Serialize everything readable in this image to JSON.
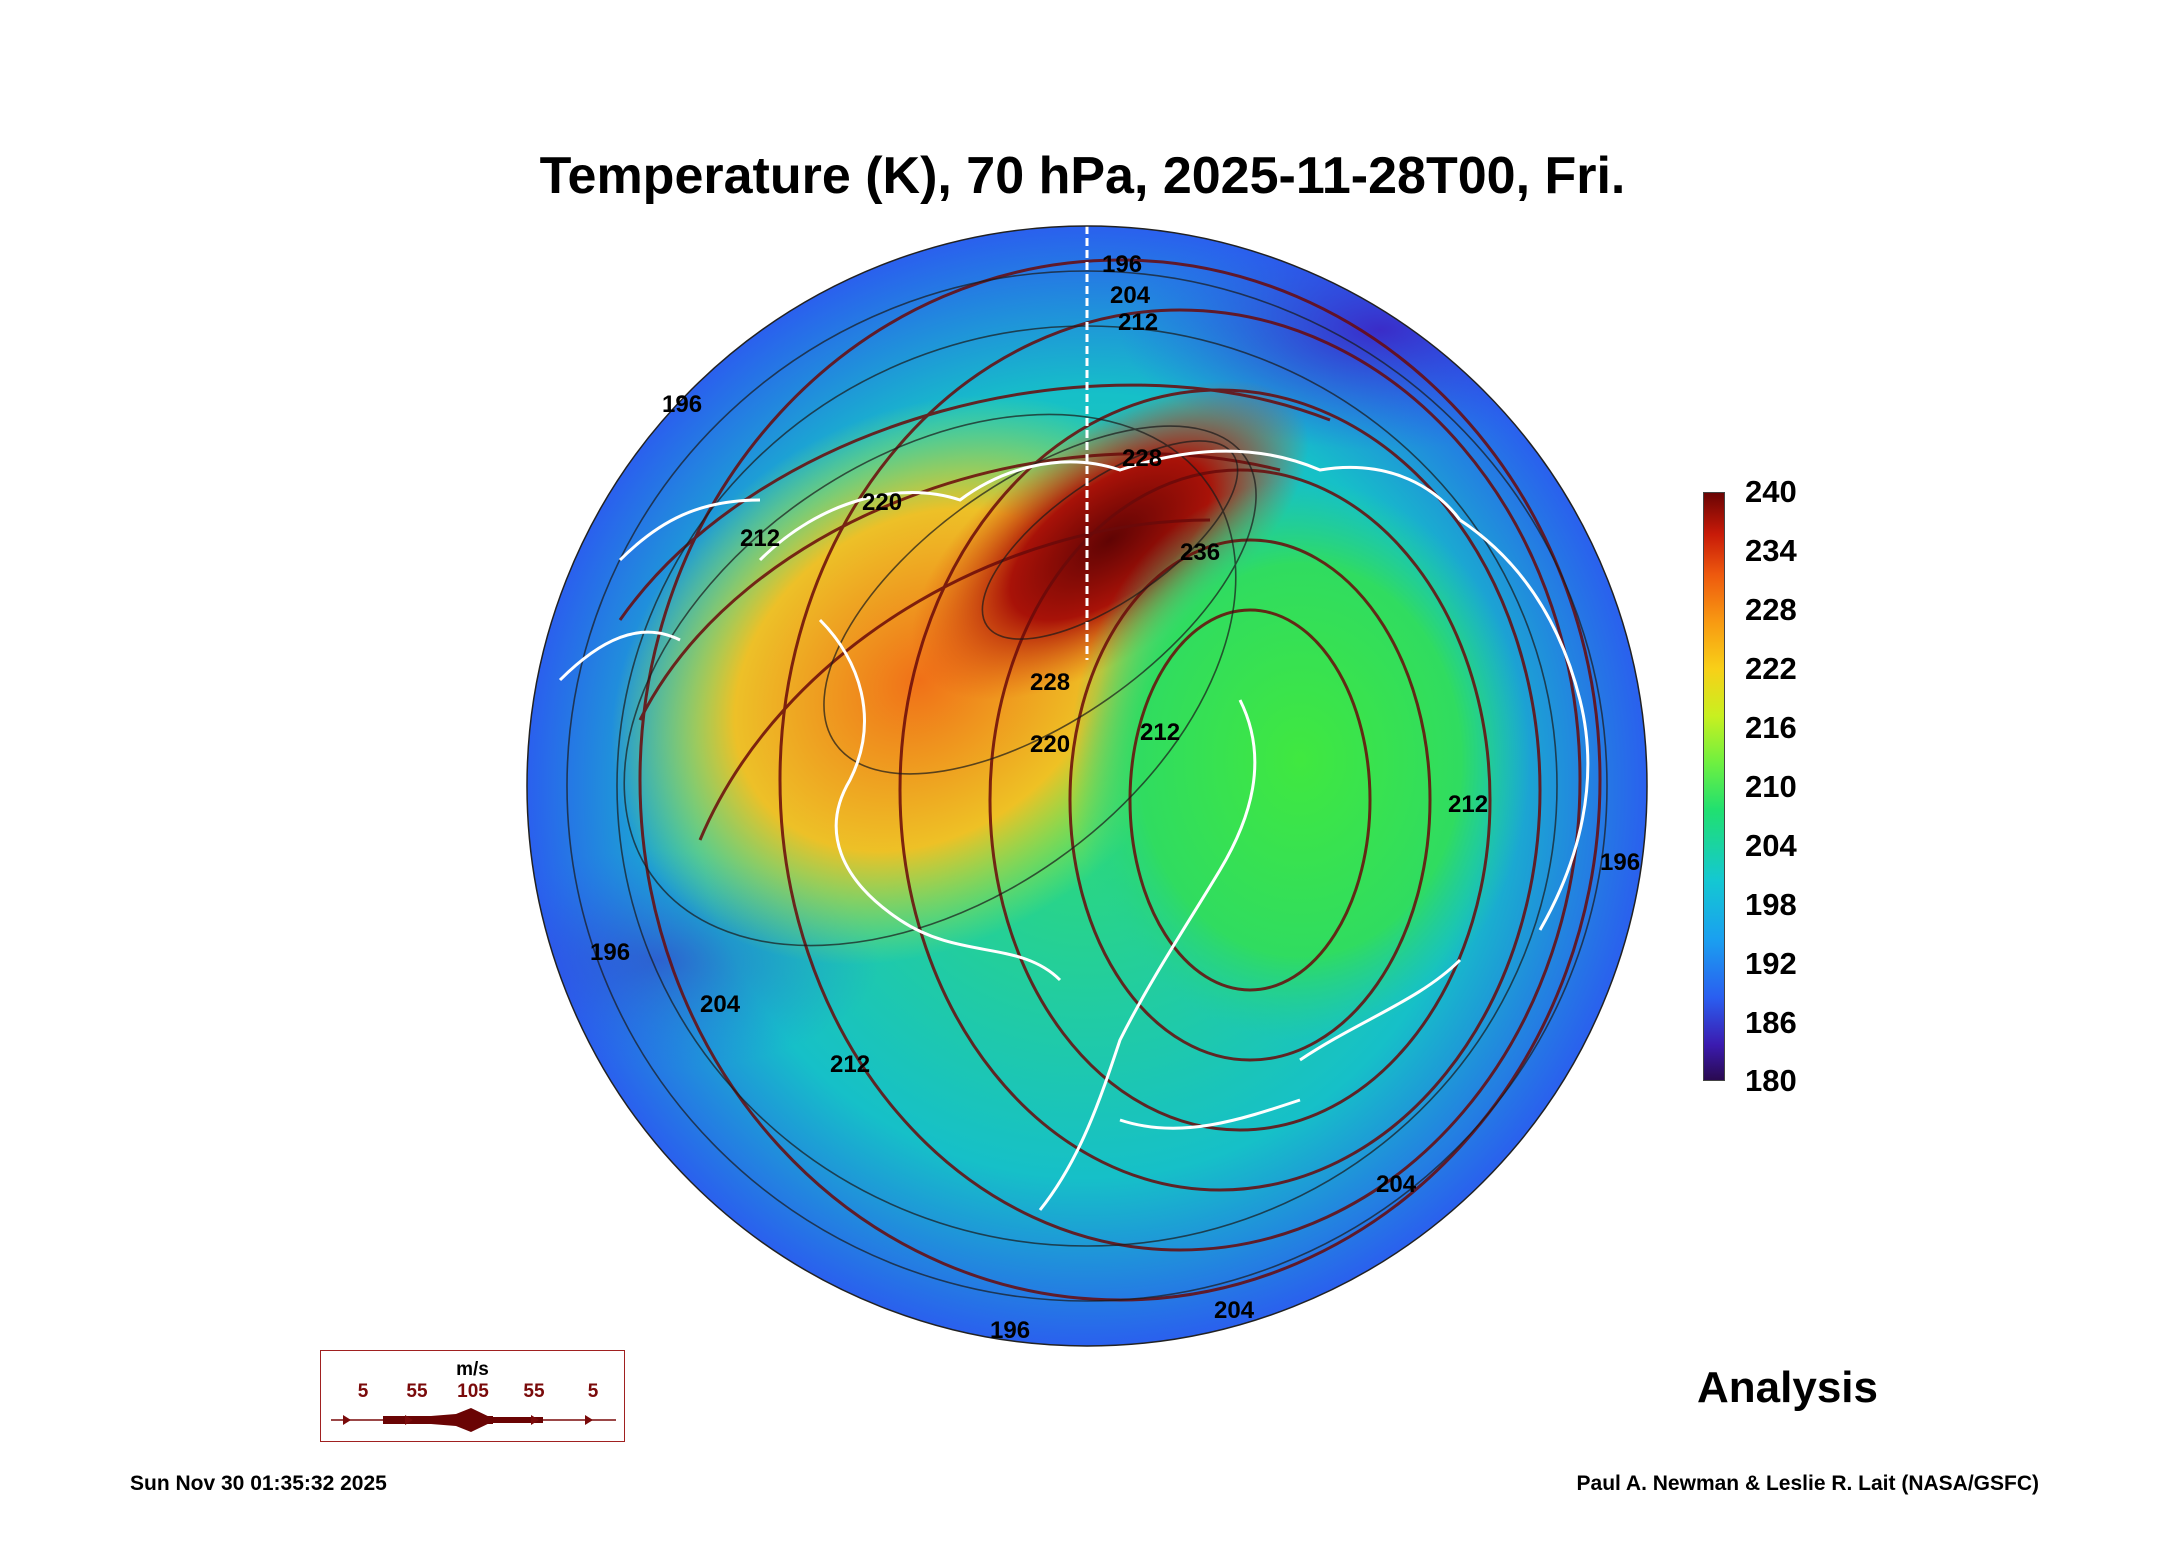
{
  "title": "Temperature (K), 70 hPa, 2025-11-28T00, Fri.",
  "colorbar": {
    "unit": "K",
    "min": 180,
    "max": 240,
    "ticks": [
      "240",
      "234",
      "228",
      "222",
      "216",
      "210",
      "204",
      "198",
      "192",
      "186",
      "180"
    ]
  },
  "contour_labels": [
    "196",
    "204",
    "212",
    "220",
    "228",
    "236",
    "196",
    "212",
    "228",
    "220",
    "212",
    "196",
    "204",
    "212",
    "204",
    "196",
    "196",
    "204",
    "212"
  ],
  "wind_legend": {
    "unit": "m/s",
    "speeds": [
      "5",
      "55",
      "105",
      "55",
      "5"
    ]
  },
  "label": "Analysis",
  "timestamp": "Sun Nov 30 01:35:32 2025",
  "credit": "Paul A. Newman & Leslie R. Lait (NASA/GSFC)",
  "colors": {
    "warm_core": "#6a0404",
    "cold_rim": "#2a5ef0",
    "streamline": "#6a0a0a",
    "coastline": "#ffffff"
  }
}
